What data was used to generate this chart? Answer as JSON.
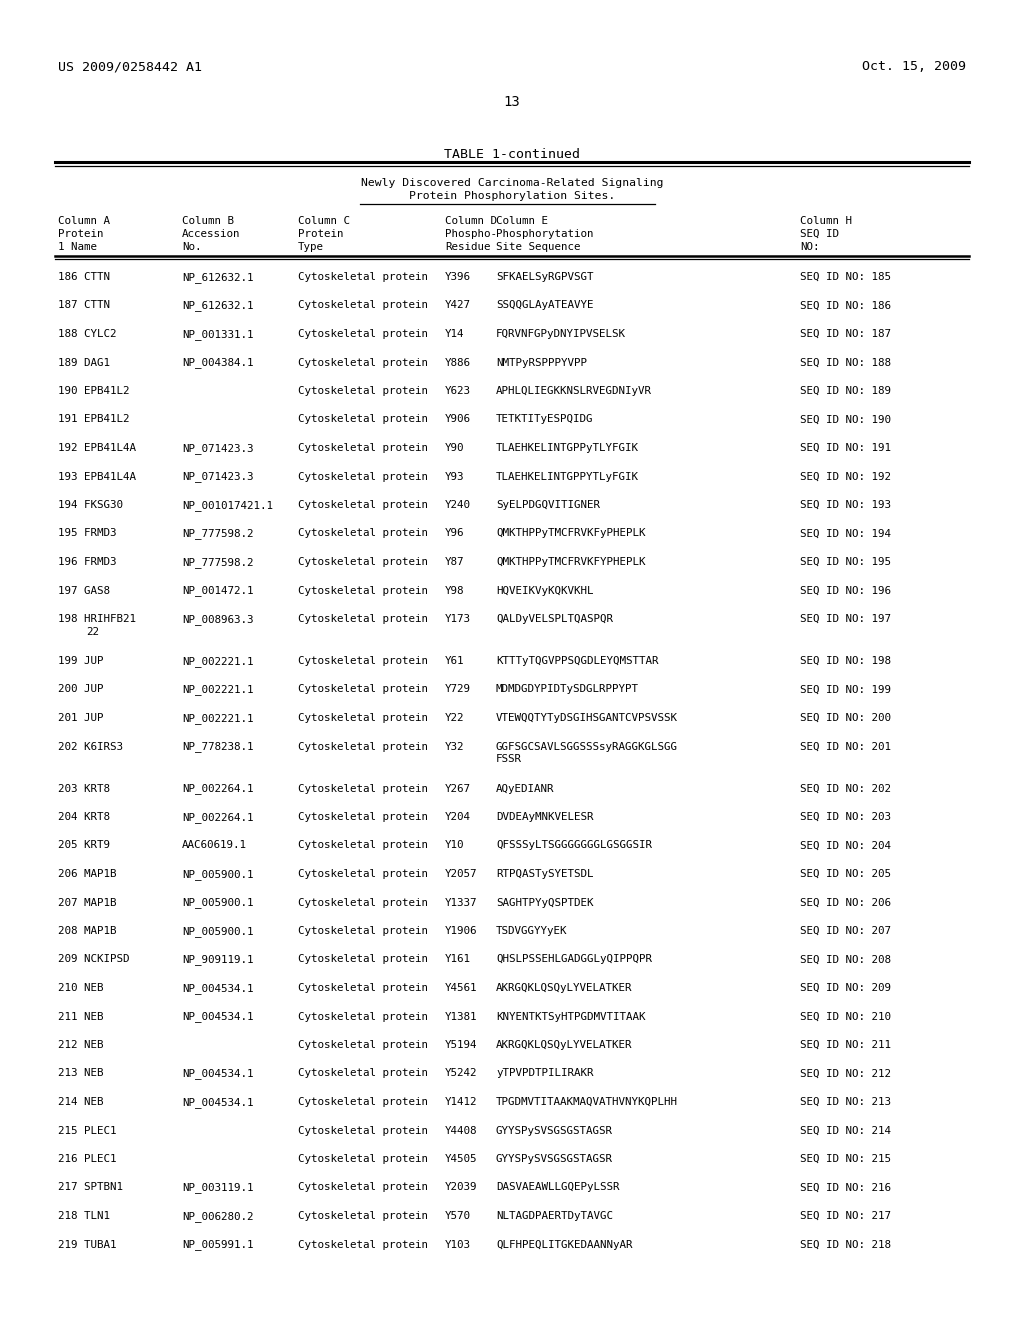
{
  "header_left": "US 2009/0258442 A1",
  "header_right": "Oct. 15, 2009",
  "page_number": "13",
  "table_title": "TABLE 1-continued",
  "subtitle1": "Newly Discovered Carcinoma-Related Signaling",
  "subtitle2": "Protein Phosphorylation Sites.",
  "rows": [
    [
      "186",
      "CTTN",
      "NP_612632.1",
      "Cytoskeletal protein",
      "Y396",
      "SFKAELSyRGPVSGT",
      "SEQ ID NO: 185",
      false,
      false
    ],
    [
      "187",
      "CTTN",
      "NP_612632.1",
      "Cytoskeletal protein",
      "Y427",
      "SSQQGLAyATEAVYE",
      "SEQ ID NO: 186",
      false,
      false
    ],
    [
      "188",
      "CYLC2",
      "NP_001331.1",
      "Cytoskeletal protein",
      "Y14",
      "FQRVNFGPyDNYIPVSELSK",
      "SEQ ID NO: 187",
      false,
      false
    ],
    [
      "189",
      "DAG1",
      "NP_004384.1",
      "Cytoskeletal protein",
      "Y886",
      "NMTPyRSPPPYVPP",
      "SEQ ID NO: 188",
      false,
      false
    ],
    [
      "190",
      "EPB41L2",
      "",
      "Cytoskeletal protein",
      "Y623",
      "APHLQLIEGKKNSLRVEGDNIyVR",
      "SEQ ID NO: 189",
      false,
      false
    ],
    [
      "191",
      "EPB41L2",
      "",
      "Cytoskeletal protein",
      "Y906",
      "TETKTITyESPQIDG",
      "SEQ ID NO: 190",
      false,
      false
    ],
    [
      "192",
      "EPB41L4A",
      "NP_071423.3",
      "Cytoskeletal protein",
      "Y90",
      "TLAEHKELINTGPPyTLYFGIK",
      "SEQ ID NO: 191",
      false,
      false
    ],
    [
      "193",
      "EPB41L4A",
      "NP_071423.3",
      "Cytoskeletal protein",
      "Y93",
      "TLAEHKELINTGPPYTLyFGIK",
      "SEQ ID NO: 192",
      false,
      false
    ],
    [
      "194",
      "FKSG30",
      "NP_001017421.1",
      "Cytoskeletal protein",
      "Y240",
      "SyELPDGQVITIGNER",
      "SEQ ID NO: 193",
      false,
      false
    ],
    [
      "195",
      "FRMD3",
      "NP_777598.2",
      "Cytoskeletal protein",
      "Y96",
      "QMKTHPPyTMCFRVKFyPHEPLK",
      "SEQ ID NO: 194",
      false,
      false
    ],
    [
      "196",
      "FRMD3",
      "NP_777598.2",
      "Cytoskeletal protein",
      "Y87",
      "QMKTHPPyTMCFRVKFYPHEPLK",
      "SEQ ID NO: 195",
      false,
      false
    ],
    [
      "197",
      "GAS8",
      "NP_001472.1",
      "Cytoskeletal protein",
      "Y98",
      "HQVEIKVyKQKVKHL",
      "SEQ ID NO: 196",
      false,
      false
    ],
    [
      "198",
      "HRIHFB21",
      "NP_008963.3",
      "Cytoskeletal protein",
      "Y173",
      "QALDyVELSPLTQASPQR",
      "SEQ ID NO: 197",
      true,
      false
    ],
    [
      "199",
      "JUP",
      "NP_002221.1",
      "Cytoskeletal protein",
      "Y61",
      "KTTTyTQGVPPSQGDLEYQMSTTAR",
      "SEQ ID NO: 198",
      false,
      false
    ],
    [
      "200",
      "JUP",
      "NP_002221.1",
      "Cytoskeletal protein",
      "Y729",
      "MDMDGDYPIDTySDGLRPPYPT",
      "SEQ ID NO: 199",
      false,
      false
    ],
    [
      "201",
      "JUP",
      "NP_002221.1",
      "Cytoskeletal protein",
      "Y22",
      "VTEWQQTYTyDSGIHSGANTCVPSVSSK",
      "SEQ ID NO: 200",
      false,
      false
    ],
    [
      "202",
      "K6IRS3",
      "NP_778238.1",
      "Cytoskeletal protein",
      "Y32",
      "GGFSGCSAVLSGGSSSsyRAGGKGLSGG",
      "SEQ ID NO: 201",
      false,
      true
    ],
    [
      "203",
      "KRT8",
      "NP_002264.1",
      "Cytoskeletal protein",
      "Y267",
      "AQyEDIANR",
      "SEQ ID NO: 202",
      false,
      false
    ],
    [
      "204",
      "KRT8",
      "NP_002264.1",
      "Cytoskeletal protein",
      "Y204",
      "DVDEAyMNKVELESR",
      "SEQ ID NO: 203",
      false,
      false
    ],
    [
      "205",
      "KRT9",
      "AAC60619.1",
      "Cytoskeletal protein",
      "Y10",
      "QFSSSyLTSGGGGGGGLGSGGSIR",
      "SEQ ID NO: 204",
      false,
      false
    ],
    [
      "206",
      "MAP1B",
      "NP_005900.1",
      "Cytoskeletal protein",
      "Y2057",
      "RTPQASTySYETSDL",
      "SEQ ID NO: 205",
      false,
      false
    ],
    [
      "207",
      "MAP1B",
      "NP_005900.1",
      "Cytoskeletal protein",
      "Y1337",
      "SAGHTPYyQSPTDEK",
      "SEQ ID NO: 206",
      false,
      false
    ],
    [
      "208",
      "MAP1B",
      "NP_005900.1",
      "Cytoskeletal protein",
      "Y1906",
      "TSDVGGYYyEK",
      "SEQ ID NO: 207",
      false,
      false
    ],
    [
      "209",
      "NCKIPSD",
      "NP_909119.1",
      "Cytoskeletal protein",
      "Y161",
      "QHSLPSSEHLGADGGLyQIPPQPR",
      "SEQ ID NO: 208",
      false,
      false
    ],
    [
      "210",
      "NEB",
      "NP_004534.1",
      "Cytoskeletal protein",
      "Y4561",
      "AKRGQKLQSQyLYVELATKER",
      "SEQ ID NO: 209",
      false,
      false
    ],
    [
      "211",
      "NEB",
      "NP_004534.1",
      "Cytoskeletal protein",
      "Y1381",
      "KNYENTKTSyHTPGDMVTITAAK",
      "SEQ ID NO: 210",
      false,
      false
    ],
    [
      "212",
      "NEB",
      "",
      "Cytoskeletal protein",
      "Y5194",
      "AKRGQKLQSQyLYVELATKER",
      "SEQ ID NO: 211",
      false,
      false
    ],
    [
      "213",
      "NEB",
      "NP_004534.1",
      "Cytoskeletal protein",
      "Y5242",
      "yTPVPDTPILIRAKR",
      "SEQ ID NO: 212",
      false,
      false
    ],
    [
      "214",
      "NEB",
      "NP_004534.1",
      "Cytoskeletal protein",
      "Y1412",
      "TPGDMVTITAAKMAQVATHVNYKQPLHH",
      "SEQ ID NO: 213",
      false,
      false
    ],
    [
      "215",
      "PLEC1",
      "",
      "Cytoskeletal protein",
      "Y4408",
      "GYYSPySVSGSGSTAGSR",
      "SEQ ID NO: 214",
      false,
      false
    ],
    [
      "216",
      "PLEC1",
      "",
      "Cytoskeletal protein",
      "Y4505",
      "GYYSPySVSGSGSTAGSR",
      "SEQ ID NO: 215",
      false,
      false
    ],
    [
      "217",
      "SPTBN1",
      "NP_003119.1",
      "Cytoskeletal protein",
      "Y2039",
      "DASVAEAWLLGQEPyLSSR",
      "SEQ ID NO: 216",
      false,
      false
    ],
    [
      "218",
      "TLN1",
      "NP_006280.2",
      "Cytoskeletal protein",
      "Y570",
      "NLTAGDPAERTDyTAVGC",
      "SEQ ID NO: 217",
      false,
      false
    ],
    [
      "219",
      "TUBA1",
      "NP_005991.1",
      "Cytoskeletal protein",
      "Y103",
      "QLFHPEQLITGKEDAANNyAR",
      "SEQ ID NO: 218",
      false,
      false
    ]
  ],
  "name2_line": "22",
  "seq2_line": "FSSR",
  "bg_color": "#ffffff",
  "text_color": "#000000"
}
